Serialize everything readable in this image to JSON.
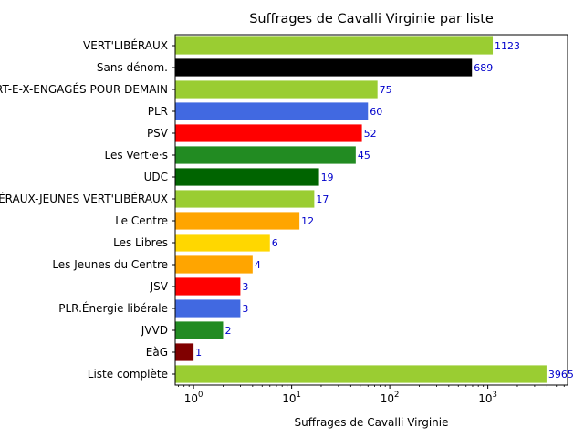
{
  "chart_data": {
    "type": "bar",
    "orientation": "horizontal",
    "title": "Suffrages de Cavalli Virginie par liste",
    "xlabel": "Suffrages de Cavalli Virginie",
    "ylabel": "",
    "x_scale": "log",
    "xlim": [
      0.65,
      6500
    ],
    "x_ticks": [
      {
        "value": 1,
        "base": "10",
        "exp": "0"
      },
      {
        "value": 10,
        "base": "10",
        "exp": "1"
      },
      {
        "value": 100,
        "base": "10",
        "exp": "2"
      },
      {
        "value": 1000,
        "base": "10",
        "exp": "3"
      }
    ],
    "grid": false,
    "legend": "none",
    "categories": [
      "VERT'LIBÉRAUX",
      "Sans dénom.",
      "JEUNES-VERT-E-X-ENGAGÉS POUR DEMAIN",
      "PLR",
      "PSV",
      "Les Vert·e·s",
      "UDC",
      "JEUNES-VERT'LIBÉRAUX-JEUNES VERT'LIBÉRAUX",
      "Le Centre",
      "Les Libres",
      "Les Jeunes du Centre",
      "JSV",
      "PLR.Énergie libérale",
      "JVVD",
      "EàG",
      "Liste complète"
    ],
    "values": [
      1123,
      689,
      75,
      60,
      52,
      45,
      19,
      17,
      12,
      6,
      4,
      3,
      3,
      2,
      1,
      3965
    ],
    "value_labels": [
      "1123",
      "689",
      "75",
      "60",
      "52",
      "45",
      "19",
      "17",
      "12",
      "6",
      "4",
      "3",
      "3",
      "2",
      "1",
      "3965"
    ],
    "colors": [
      "#9acd32",
      "#000000",
      "#9acd32",
      "#4169e1",
      "#ff0000",
      "#228b22",
      "#006400",
      "#9acd32",
      "#ffa500",
      "#ffd700",
      "#ffa500",
      "#ff0000",
      "#4169e1",
      "#228b22",
      "#800000",
      "#9acd32"
    ],
    "data_label_color": "#0000cc"
  }
}
